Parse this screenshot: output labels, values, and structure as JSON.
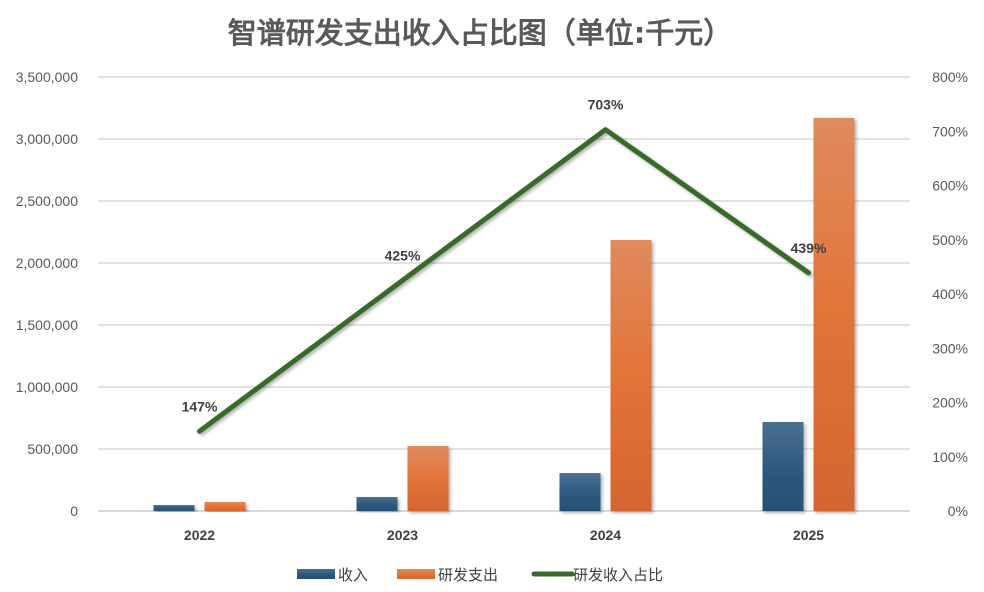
{
  "chart_data": {
    "type": "bar",
    "title": "智谱研发支出收入占比图（单位:千元）",
    "categories": [
      "2022",
      "2023",
      "2024",
      "2025"
    ],
    "series": [
      {
        "name": "收入",
        "type": "bar",
        "axis": "left",
        "color": "#2e5a80",
        "values": [
          48000,
          113000,
          306000,
          718000
        ]
      },
      {
        "name": "研发支出",
        "type": "bar",
        "axis": "left",
        "color": "#e07038",
        "values": [
          73000,
          524000,
          2186000,
          3170000
        ]
      },
      {
        "name": "研发收入占比",
        "type": "line",
        "axis": "right",
        "color": "#376b2a",
        "values": [
          147,
          425,
          703,
          439
        ],
        "labels": [
          "147%",
          "425%",
          "703%",
          "439%"
        ]
      }
    ],
    "left_axis": {
      "range": [
        0,
        3500000
      ],
      "ticks": [
        "0",
        "500,000",
        "1,000,000",
        "1,500,000",
        "2,000,000",
        "2,500,000",
        "3,000,000",
        "3,500,000"
      ]
    },
    "right_axis": {
      "range": [
        0,
        800
      ],
      "ticks": [
        "0%",
        "100%",
        "200%",
        "300%",
        "400%",
        "500%",
        "600%",
        "700%",
        "800%"
      ]
    },
    "grid": true,
    "legend": "bottom"
  }
}
